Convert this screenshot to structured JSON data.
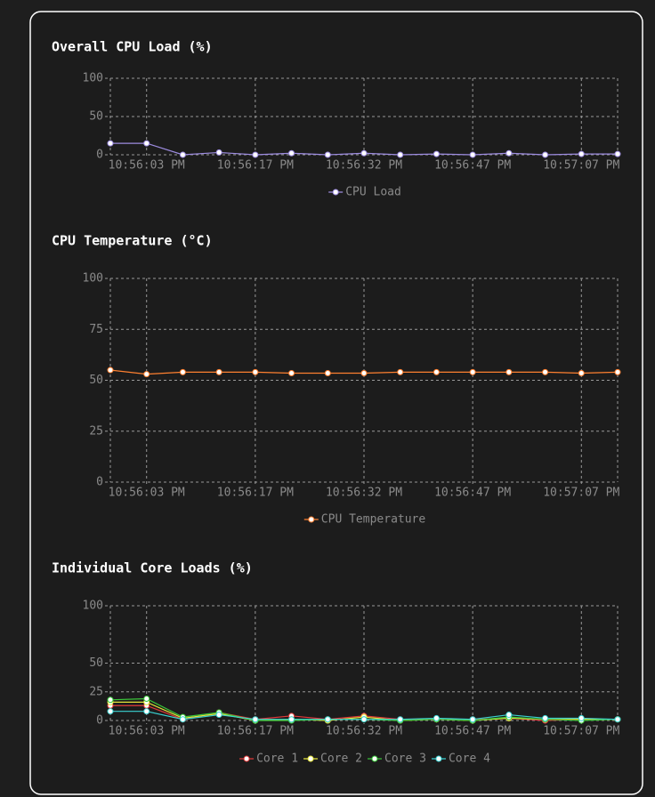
{
  "chart_data": [
    {
      "type": "line",
      "title": "Overall CPU Load (%)",
      "categories": [
        null,
        "10:56:03 PM",
        null,
        null,
        "10:56:17 PM",
        null,
        null,
        "10:56:32 PM",
        null,
        null,
        "10:56:47 PM",
        null,
        null,
        "10:57:07 PM",
        null
      ],
      "series": [
        {
          "name": "CPU Load",
          "color": "#9d8ce0",
          "values": [
            15,
            15,
            0,
            3,
            0,
            2,
            0,
            2,
            0,
            1,
            0,
            2,
            0,
            1,
            1
          ]
        }
      ],
      "ylim": [
        0,
        100
      ],
      "yticks": [
        0,
        50,
        100
      ],
      "grid": true,
      "legend": "bottom"
    },
    {
      "type": "line",
      "title": "CPU Temperature (°C)",
      "categories": [
        null,
        "10:56:03 PM",
        null,
        null,
        "10:56:17 PM",
        null,
        null,
        "10:56:32 PM",
        null,
        null,
        "10:56:47 PM",
        null,
        null,
        "10:57:07 PM",
        null
      ],
      "series": [
        {
          "name": "CPU Temperature",
          "color": "#ff8030",
          "values": [
            55,
            53,
            54,
            54,
            54,
            53.5,
            53.5,
            53.5,
            54,
            54,
            54,
            54,
            54,
            53.5,
            54
          ]
        }
      ],
      "ylim": [
        0,
        100
      ],
      "yticks": [
        0,
        25,
        50,
        75,
        100
      ],
      "grid": true,
      "legend": "bottom"
    },
    {
      "type": "line",
      "title": "Individual Core Loads (%)",
      "categories": [
        null,
        "10:56:03 PM",
        null,
        null,
        "10:56:17 PM",
        null,
        null,
        "10:56:32 PM",
        null,
        null,
        "10:56:47 PM",
        null,
        null,
        "10:57:07 PM",
        null
      ],
      "series": [
        {
          "name": "Core 1",
          "color": "#e03a3a",
          "values": [
            13,
            13,
            1,
            7,
            1,
            4,
            1,
            4,
            1,
            1,
            1,
            2,
            0,
            1,
            1
          ]
        },
        {
          "name": "Core 2",
          "color": "#e6e63a",
          "values": [
            16,
            16,
            2,
            6,
            0,
            1,
            0,
            3,
            0,
            1,
            0,
            2,
            1,
            1,
            1
          ]
        },
        {
          "name": "Core 3",
          "color": "#3ac83a",
          "values": [
            18,
            19,
            3,
            7,
            0,
            0,
            1,
            1,
            0,
            1,
            0,
            3,
            1,
            0,
            1
          ]
        },
        {
          "name": "Core 4",
          "color": "#3ad2d2",
          "values": [
            8,
            8,
            1,
            5,
            1,
            1,
            1,
            1,
            1,
            2,
            1,
            5,
            2,
            2,
            1
          ]
        }
      ],
      "ylim": [
        0,
        100
      ],
      "yticks": [
        0,
        25,
        50,
        100
      ],
      "grid": true,
      "legend": "bottom"
    }
  ]
}
